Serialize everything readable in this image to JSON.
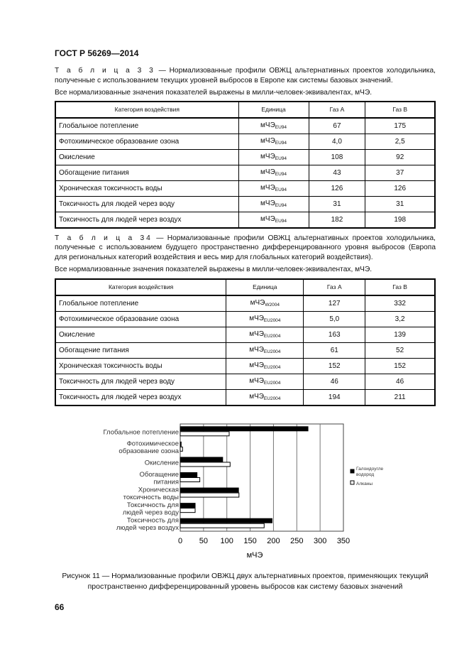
{
  "header": "ГОСТ Р 56269—2014",
  "table33": {
    "label": "Т а б л и ц а  3 3",
    "caption": " — Нормализованные профили ОВЖЦ альтернативных проектов холодильника, полученные с использованием текущих уровней выбросов в Европе как системы базовых значений.",
    "note": "Все нормализованные значения показателей выражены в милли-человек-эквивалентах, мЧЭ.",
    "columns": [
      "Категория воздействия",
      "Единица",
      "Газ А",
      "Газ В"
    ],
    "rows": [
      {
        "cat": "Глобальное потепление",
        "unit": "мЧЭ",
        "sub": "EU94",
        "a": "67",
        "b": "175"
      },
      {
        "cat": "Фотохимическое образование озона",
        "unit": "мЧЭ",
        "sub": "EU94",
        "a": "4,0",
        "b": "2,5"
      },
      {
        "cat": "Окисление",
        "unit": "мЧЭ",
        "sub": "EU94",
        "a": "108",
        "b": "92"
      },
      {
        "cat": "Обогащение питания",
        "unit": "мЧЭ",
        "sub": "EU94",
        "a": "43",
        "b": "37"
      },
      {
        "cat": "Хроническая токсичность воды",
        "unit": "мЧЭ",
        "sub": "EU94",
        "a": "126",
        "b": "126"
      },
      {
        "cat": "Токсичность для людей через воду",
        "unit": "мЧЭ",
        "sub": "EU94",
        "a": "31",
        "b": "31"
      },
      {
        "cat": "Токсичность для людей через воздух",
        "unit": "мЧЭ",
        "sub": "EU94",
        "a": "182",
        "b": "198"
      }
    ]
  },
  "table34": {
    "label": "Т а б л и ц а  34",
    "caption": " — Нормализованные профили ОВЖЦ альтернативных проектов холодильника, полученные с использованием будущего пространственно дифференцированного уровня выбросов (Европа для региональных категорий воздействия и весь мир для глобальных категорий воздействия).",
    "note": "Все нормализованные значения показателей выражены в милли-человек-эквивалентах, мЧЭ.",
    "columns": [
      "Категория воздействия",
      "Единица",
      "Газ А",
      "Газ В"
    ],
    "rows": [
      {
        "cat": "Глобальное потепление",
        "unit": "мЧЭ",
        "sub": "W2004",
        "a": "127",
        "b": "332"
      },
      {
        "cat": "Фотохимическое образование озона",
        "unit": "мЧЭ",
        "sub": "EU2004",
        "a": "5,0",
        "b": "3,2"
      },
      {
        "cat": "Окисление",
        "unit": "мЧЭ",
        "sub": "EU2004",
        "a": "163",
        "b": "139"
      },
      {
        "cat": "Обогащение питания",
        "unit": "мЧЭ",
        "sub": "EU2004",
        "a": "61",
        "b": "52"
      },
      {
        "cat": "Хроническая токсичность воды",
        "unit": "мЧЭ",
        "sub": "EU2004",
        "a": "152",
        "b": "152"
      },
      {
        "cat": "Токсичность для людей через воду",
        "unit": "мЧЭ",
        "sub": "EU2004",
        "a": "46",
        "b": "46"
      },
      {
        "cat": "Токсичность для людей через воздух",
        "unit": "мЧЭ",
        "sub": "EU2004",
        "a": "194",
        "b": "211"
      }
    ]
  },
  "chart_data": {
    "type": "bar",
    "orientation": "horizontal",
    "categories": [
      [
        "Глобальное потепление"
      ],
      [
        "Фотохимическое",
        "образование озона"
      ],
      [
        "Окисление"
      ],
      [
        "Обогащение",
        "питания"
      ],
      [
        "Хроническая",
        "токсичность воды"
      ],
      [
        "Токсичность для",
        "людей через воду"
      ],
      [
        "Токсичность для",
        "людей через воздух"
      ]
    ],
    "series": [
      {
        "name": [
          "Галоидоугле",
          "водород"
        ],
        "color": "#000000",
        "values": [
          274,
          2,
          91,
          36,
          125,
          32,
          197
        ]
      },
      {
        "name": [
          "Алканы"
        ],
        "color": "#ffffff",
        "values": [
          105,
          5,
          107,
          42,
          126,
          32,
          180
        ]
      }
    ],
    "xlabel": "мЧЭ",
    "xlim": [
      0,
      350
    ],
    "xticks": [
      "0",
      "50",
      "100",
      "150",
      "200",
      "250",
      "300",
      "350"
    ],
    "grid": true,
    "legend": "right"
  },
  "figure_caption": "Рисунок 11 — Нормализованные профили ОВЖЦ двух альтернативных проектов, применяющих текущий пространственно дифференцированный уровень выбросов как систему базовых значений",
  "page_number": "66"
}
